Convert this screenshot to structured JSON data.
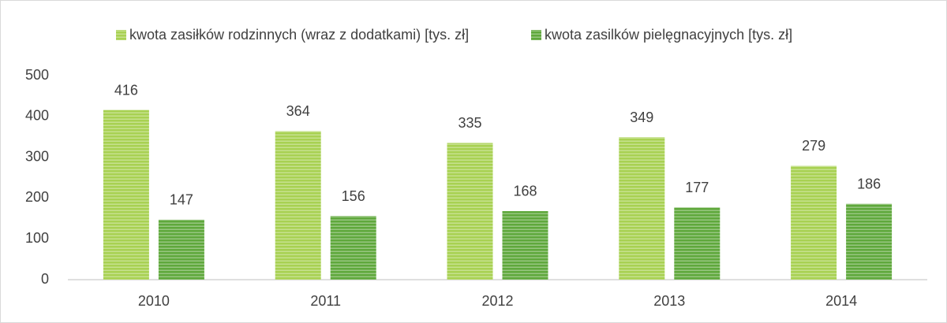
{
  "chart_data": {
    "type": "bar",
    "categories": [
      "2010",
      "2011",
      "2012",
      "2013",
      "2014"
    ],
    "series": [
      {
        "name": "kwota zasiłków rodzinnych (wraz z dodatkami) [tys. zł]",
        "color": "#a8d152",
        "values": [
          416,
          364,
          335,
          349,
          279
        ]
      },
      {
        "name": "kwota zasilków pielęgnacyjnych [tys. zł]",
        "color": "#5fa83c",
        "values": [
          147,
          156,
          168,
          177,
          186
        ]
      }
    ],
    "ylim": [
      0,
      500
    ],
    "yticks": [
      0,
      100,
      200,
      300,
      400,
      500
    ],
    "grid": false,
    "legend": "top"
  }
}
